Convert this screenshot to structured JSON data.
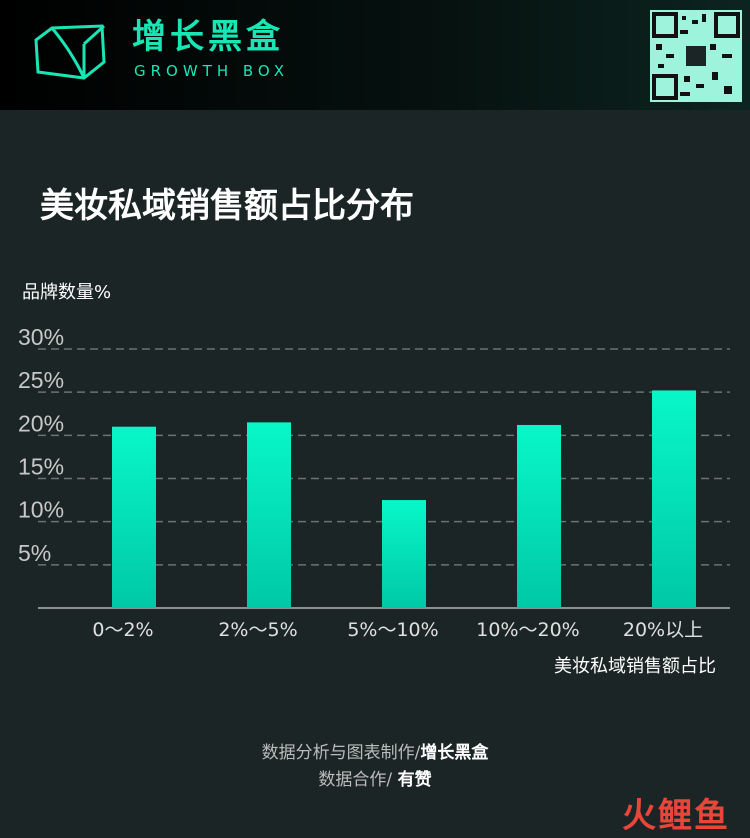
{
  "header": {
    "brand_cn": "增长黑盒",
    "brand_en": "GROWTH BOX",
    "logo_icon": "box-logo-icon",
    "qr_icon": "qr-code-icon"
  },
  "title": "美妆私域销售额占比分布",
  "chart_data": {
    "type": "bar",
    "title": "美妆私域销售额占比分布",
    "ylabel": "品牌数量%",
    "xlabel": "美妆私域销售额占比",
    "categories": [
      "0～2%",
      "2%～5%",
      "5%～10%",
      "10%～20%",
      "20%以上"
    ],
    "values": [
      21.0,
      21.5,
      12.5,
      21.2,
      25.2
    ],
    "yticks": [
      "5%",
      "10%",
      "15%",
      "20%",
      "25%",
      "30%"
    ],
    "ytick_values": [
      5,
      10,
      15,
      20,
      25,
      30
    ],
    "ylim": [
      0,
      30
    ],
    "grid": true,
    "bar_color_top": "#08f7c8",
    "bar_color_bottom": "#00c8a6"
  },
  "credits": {
    "line1_prefix": "数据分析与图表制作/",
    "line1_name": "增长黑盒",
    "line2_prefix": "数据合作/ ",
    "line2_name": "有赞"
  },
  "watermark": "火鲤鱼"
}
